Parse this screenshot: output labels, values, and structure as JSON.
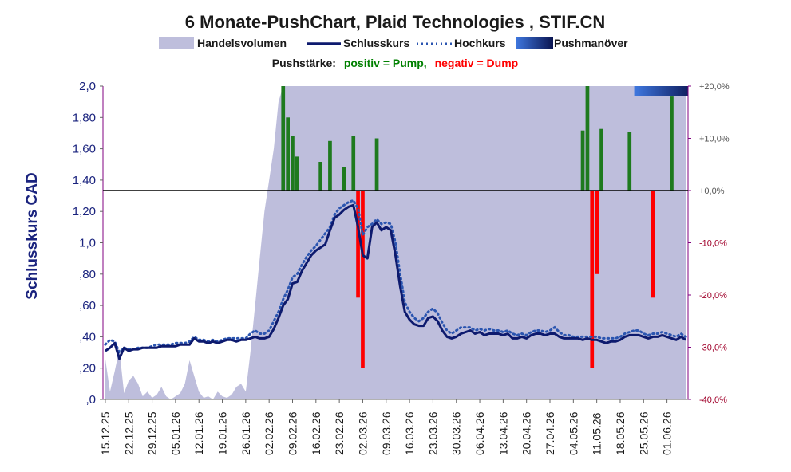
{
  "chart_data": {
    "type": "line",
    "title": "6 Monate-PushChart, Plaid Technologies , STIF.CN",
    "subtitle_prefix": "Pushstärke:",
    "subtitle_positive": "positiv = Pump,",
    "subtitle_negative": "negativ = Dump",
    "ylabel": "Schlusskurs CAD",
    "legend": [
      {
        "label": "Handelsvolumen",
        "kind": "area"
      },
      {
        "label": "Schlusskurs",
        "kind": "solid"
      },
      {
        "label": "Hochkurs",
        "kind": "dotted"
      },
      {
        "label": "Pushmanöver",
        "kind": "gradient"
      }
    ],
    "colors": {
      "volume": "#bebedc",
      "close": "#0d1a6e",
      "high": "#2b55b0",
      "pump": "#1e7a1e",
      "dump": "#ff0000",
      "axis_left_text": "#1a237e",
      "axis_right_text": "#a0002a",
      "axis_line_right": "#800080",
      "push_dark": "#0a1450",
      "push_light": "#3f78e0",
      "positive_text": "#008000",
      "negative_text": "#ff0000"
    },
    "ylim": [
      0,
      2.0
    ],
    "y_ticks": [
      ",0",
      ",20",
      ",40",
      ",60",
      ",80",
      "1,0",
      "1,20",
      "1,40",
      "1,60",
      "1,80",
      "2,0"
    ],
    "y2lim": [
      -40,
      20
    ],
    "y2_ticks": [
      "-40,0%",
      "-30,0%",
      "-20,0%",
      "-10,0%",
      "+0,0%",
      "+10,0%",
      "+20,0%"
    ],
    "x_ticks": [
      "15.12.25",
      "22.12.25",
      "29.12.25",
      "05.01.26",
      "12.01.26",
      "19.01.26",
      "26.01.26",
      "02.02.26",
      "09.02.26",
      "16.02.26",
      "23.02.26",
      "02.03.26",
      "09.03.26",
      "16.03.26",
      "23.03.26",
      "30.03.26",
      "06.04.26",
      "13.04.26",
      "20.04.26",
      "27.04.26",
      "04.05.26",
      "11.05.26",
      "18.05.26",
      "25.05.26",
      "01.06.26"
    ],
    "n_days": 125,
    "close": [
      0.31,
      0.33,
      0.36,
      0.26,
      0.33,
      0.31,
      0.32,
      0.32,
      0.33,
      0.33,
      0.33,
      0.33,
      0.34,
      0.34,
      0.34,
      0.34,
      0.35,
      0.35,
      0.35,
      0.39,
      0.37,
      0.37,
      0.36,
      0.37,
      0.36,
      0.37,
      0.38,
      0.38,
      0.37,
      0.38,
      0.38,
      0.39,
      0.4,
      0.39,
      0.39,
      0.4,
      0.45,
      0.52,
      0.6,
      0.64,
      0.74,
      0.75,
      0.82,
      0.87,
      0.92,
      0.95,
      0.97,
      0.99,
      1.08,
      1.16,
      1.18,
      1.21,
      1.23,
      1.24,
      1.1,
      0.92,
      0.9,
      1.1,
      1.13,
      1.08,
      1.1,
      1.08,
      0.92,
      0.72,
      0.56,
      0.51,
      0.48,
      0.47,
      0.47,
      0.52,
      0.53,
      0.5,
      0.44,
      0.4,
      0.39,
      0.4,
      0.42,
      0.43,
      0.44,
      0.42,
      0.43,
      0.41,
      0.42,
      0.42,
      0.42,
      0.41,
      0.42,
      0.39,
      0.39,
      0.4,
      0.39,
      0.41,
      0.42,
      0.42,
      0.41,
      0.42,
      0.42,
      0.4,
      0.39,
      0.39,
      0.39,
      0.39,
      0.38,
      0.39,
      0.38,
      0.38,
      0.37,
      0.36,
      0.37,
      0.37,
      0.38,
      0.4,
      0.41,
      0.41,
      0.41,
      0.4,
      0.39,
      0.4,
      0.4,
      0.41,
      0.4,
      0.39,
      0.38,
      0.4,
      0.38
    ],
    "high": [
      0.35,
      0.38,
      0.37,
      0.3,
      0.33,
      0.32,
      0.32,
      0.33,
      0.33,
      0.33,
      0.34,
      0.35,
      0.35,
      0.35,
      0.35,
      0.36,
      0.36,
      0.36,
      0.37,
      0.4,
      0.38,
      0.38,
      0.37,
      0.38,
      0.37,
      0.38,
      0.39,
      0.39,
      0.39,
      0.39,
      0.39,
      0.42,
      0.44,
      0.42,
      0.42,
      0.44,
      0.5,
      0.56,
      0.64,
      0.7,
      0.78,
      0.8,
      0.86,
      0.91,
      0.95,
      0.98,
      1.02,
      1.06,
      1.1,
      1.18,
      1.22,
      1.24,
      1.26,
      1.27,
      1.22,
      1.05,
      1.1,
      1.12,
      1.15,
      1.12,
      1.13,
      1.12,
      1.0,
      0.8,
      0.62,
      0.56,
      0.52,
      0.5,
      0.52,
      0.56,
      0.58,
      0.55,
      0.49,
      0.44,
      0.42,
      0.44,
      0.46,
      0.46,
      0.46,
      0.44,
      0.45,
      0.44,
      0.45,
      0.44,
      0.44,
      0.43,
      0.44,
      0.42,
      0.41,
      0.42,
      0.41,
      0.43,
      0.44,
      0.44,
      0.43,
      0.44,
      0.46,
      0.43,
      0.41,
      0.41,
      0.4,
      0.4,
      0.4,
      0.4,
      0.4,
      0.4,
      0.39,
      0.39,
      0.39,
      0.39,
      0.4,
      0.42,
      0.43,
      0.44,
      0.44,
      0.42,
      0.41,
      0.42,
      0.42,
      0.43,
      0.42,
      0.41,
      0.4,
      0.42,
      0.4
    ],
    "volume": [
      0.26,
      0.05,
      0.18,
      0.32,
      0.04,
      0.12,
      0.15,
      0.1,
      0.02,
      0.05,
      0.01,
      0.03,
      0.08,
      0.02,
      0.0,
      0.02,
      0.04,
      0.1,
      0.25,
      0.15,
      0.05,
      0.01,
      0.02,
      0.0,
      0.05,
      0.02,
      0.01,
      0.03,
      0.08,
      0.1,
      0.05,
      0.3,
      0.6,
      0.9,
      1.2,
      1.4,
      1.6,
      1.9,
      2.0,
      2.0,
      2.0,
      2.0,
      2.0,
      2.0,
      2.0,
      2.0,
      2.0,
      2.0,
      2.0,
      2.0,
      2.0,
      2.0,
      2.0,
      2.0,
      2.0,
      2.0,
      2.0,
      2.0,
      2.0,
      2.0,
      2.0,
      2.0,
      2.0,
      2.0,
      2.0,
      2.0,
      2.0,
      2.0,
      2.0,
      2.0,
      2.0,
      2.0,
      2.0,
      2.0,
      2.0,
      2.0,
      2.0,
      2.0,
      2.0,
      2.0,
      2.0,
      2.0,
      2.0,
      2.0,
      2.0,
      2.0,
      2.0,
      2.0,
      2.0,
      2.0,
      2.0,
      2.0,
      2.0,
      2.0,
      2.0,
      2.0,
      2.0,
      2.0,
      2.0,
      2.0,
      2.0,
      2.0,
      2.0,
      2.0,
      2.0,
      2.0,
      2.0,
      2.0,
      2.0,
      2.0,
      2.0,
      2.0,
      2.0,
      2.0,
      2.0,
      2.0,
      2.0,
      2.0,
      2.0,
      2.0,
      2.0,
      2.0,
      2.0,
      2.0,
      2.0
    ],
    "pump_bars": [
      {
        "day": 38,
        "pct": 20.0
      },
      {
        "day": 39,
        "pct": 14.0
      },
      {
        "day": 40,
        "pct": 10.5
      },
      {
        "day": 41,
        "pct": 6.5
      },
      {
        "day": 46,
        "pct": 5.5
      },
      {
        "day": 48,
        "pct": 9.5
      },
      {
        "day": 51,
        "pct": 4.5
      },
      {
        "day": 53,
        "pct": 10.5
      },
      {
        "day": 58,
        "pct": 10.0
      },
      {
        "day": 102,
        "pct": 11.5
      },
      {
        "day": 103,
        "pct": 20.0
      },
      {
        "day": 106,
        "pct": 11.8
      },
      {
        "day": 112,
        "pct": 11.2
      },
      {
        "day": 121,
        "pct": 18.0
      }
    ],
    "dump_bars": [
      {
        "day": 54,
        "pct": -20.5
      },
      {
        "day": 55,
        "pct": -34.0
      },
      {
        "day": 104,
        "pct": -34.0
      },
      {
        "day": 105,
        "pct": -16.0
      },
      {
        "day": 117,
        "pct": -20.5
      }
    ],
    "push_range": [
      113,
      126
    ]
  }
}
